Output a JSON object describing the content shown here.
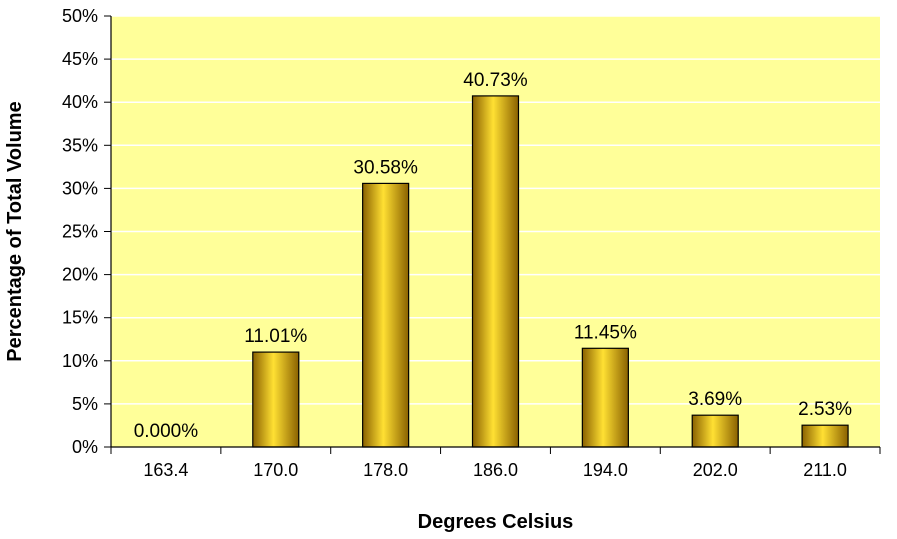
{
  "chart_data": {
    "type": "bar",
    "title": "",
    "xlabel": "Degrees Celsius",
    "ylabel": "Percentage of Total Volume",
    "categories": [
      "163.4",
      "170.0",
      "178.0",
      "186.0",
      "194.0",
      "202.0",
      "211.0"
    ],
    "values": [
      0.0,
      11.01,
      30.58,
      40.73,
      11.45,
      3.69,
      2.53
    ],
    "data_labels": [
      "0.000%",
      "11.01%",
      "30.58%",
      "40.73%",
      "11.45%",
      "3.69%",
      "2.53%"
    ],
    "ylim": [
      0,
      50
    ],
    "yticks": [
      0,
      5,
      10,
      15,
      20,
      25,
      30,
      35,
      40,
      45,
      50
    ],
    "ytick_labels": [
      "0%",
      "5%",
      "10%",
      "15%",
      "20%",
      "25%",
      "30%",
      "35%",
      "40%",
      "45%",
      "50%"
    ],
    "grid": true,
    "legend": "none"
  },
  "colors": {
    "plot_background": "#ffff99",
    "gridline": "#ffffff",
    "bar_dark": "#8a6100",
    "bar_light": "#ffe033",
    "bar_outline": "#000000"
  }
}
